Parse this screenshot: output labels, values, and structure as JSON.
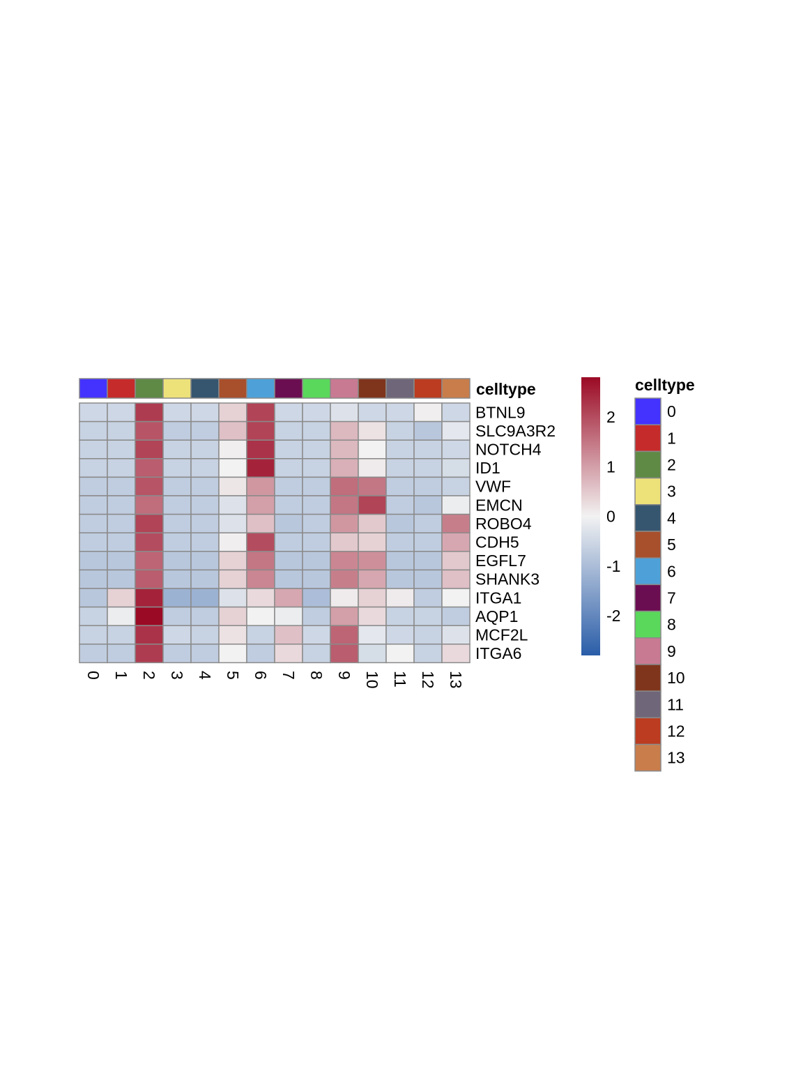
{
  "chart_data": {
    "type": "heatmap",
    "title": "",
    "annotation_title": "celltype",
    "legend_title": "celltype",
    "columns": [
      "0",
      "1",
      "2",
      "3",
      "4",
      "5",
      "6",
      "7",
      "8",
      "9",
      "10",
      "11",
      "12",
      "13"
    ],
    "rows": [
      "BTNL9",
      "SLC9A3R2",
      "NOTCH4",
      "ID1",
      "VWF",
      "EMCN",
      "ROBO4",
      "CDH5",
      "EGFL7",
      "SHANK3",
      "ITGA1",
      "AQP1",
      "MCF2L",
      "ITGA6"
    ],
    "values": [
      [
        -0.5,
        -0.5,
        2.2,
        -0.5,
        -0.5,
        0.4,
        2.1,
        -0.5,
        -0.5,
        -0.3,
        -0.5,
        -0.5,
        0.05,
        -0.5
      ],
      [
        -0.6,
        -0.6,
        1.9,
        -0.7,
        -0.7,
        0.6,
        2.1,
        -0.6,
        -0.6,
        0.7,
        0.2,
        -0.6,
        -0.8,
        -0.2
      ],
      [
        -0.6,
        -0.6,
        2.1,
        -0.6,
        -0.6,
        0.05,
        2.3,
        -0.6,
        -0.6,
        0.7,
        0.0,
        -0.6,
        -0.6,
        -0.5
      ],
      [
        -0.6,
        -0.6,
        1.8,
        -0.6,
        -0.6,
        0.0,
        2.5,
        -0.6,
        -0.6,
        0.8,
        0.1,
        -0.6,
        -0.6,
        -0.4
      ],
      [
        -0.7,
        -0.7,
        1.9,
        -0.7,
        -0.7,
        0.15,
        1.1,
        -0.7,
        -0.7,
        1.6,
        1.5,
        -0.7,
        -0.7,
        -0.6
      ],
      [
        -0.7,
        -0.7,
        1.6,
        -0.7,
        -0.7,
        -0.3,
        1.0,
        -0.7,
        -0.7,
        1.5,
        2.1,
        -0.7,
        -0.8,
        -0.1
      ],
      [
        -0.7,
        -0.7,
        2.1,
        -0.7,
        -0.7,
        -0.3,
        0.6,
        -0.8,
        -0.7,
        1.1,
        0.5,
        -0.8,
        -0.7,
        1.4
      ],
      [
        -0.7,
        -0.7,
        2.0,
        -0.7,
        -0.7,
        0.05,
        2.0,
        -0.7,
        -0.7,
        0.5,
        0.4,
        -0.7,
        -0.7,
        0.9
      ],
      [
        -0.8,
        -0.8,
        1.7,
        -0.8,
        -0.8,
        0.4,
        1.5,
        -0.8,
        -0.8,
        1.3,
        1.2,
        -0.8,
        -0.8,
        0.5
      ],
      [
        -0.8,
        -0.8,
        1.8,
        -0.8,
        -0.8,
        0.4,
        1.3,
        -0.8,
        -0.8,
        1.4,
        0.9,
        -0.8,
        -0.8,
        0.6
      ],
      [
        -0.8,
        0.4,
        2.5,
        -1.2,
        -1.2,
        -0.3,
        0.3,
        0.9,
        -1.0,
        0.1,
        0.4,
        0.1,
        -0.7,
        0.0
      ],
      [
        -0.6,
        -0.1,
        2.8,
        -0.7,
        -0.7,
        0.4,
        0.0,
        -0.1,
        -0.7,
        1.0,
        0.3,
        -0.6,
        -0.6,
        -0.7
      ],
      [
        -0.6,
        -0.6,
        2.3,
        -0.5,
        -0.6,
        0.2,
        -0.6,
        0.6,
        -0.5,
        1.7,
        -0.2,
        -0.5,
        -0.6,
        -0.3
      ],
      [
        -0.7,
        -0.7,
        2.2,
        -0.7,
        -0.7,
        0.0,
        -0.7,
        0.3,
        -0.6,
        1.8,
        -0.4,
        0.0,
        -0.6,
        0.3
      ]
    ],
    "color_scale": {
      "min": -2.8,
      "max": 2.8,
      "low": "#2a5da8",
      "mid": "#f2f2f2",
      "high": "#9b0a24",
      "ticks": [
        -2,
        -1,
        0,
        1,
        2
      ],
      "tick_labels": [
        "-2",
        "-1",
        "0",
        "1",
        "2"
      ]
    },
    "celltype_colors": [
      "#4433ff",
      "#c62b2b",
      "#5f8a45",
      "#ede27a",
      "#36566f",
      "#a84f2c",
      "#4ea1d8",
      "#6b0e51",
      "#5ad85b",
      "#c87a92",
      "#7f351c",
      "#6f6679",
      "#bb3c20",
      "#c97d4b"
    ],
    "cell_border_color": "#8a8a8a"
  }
}
